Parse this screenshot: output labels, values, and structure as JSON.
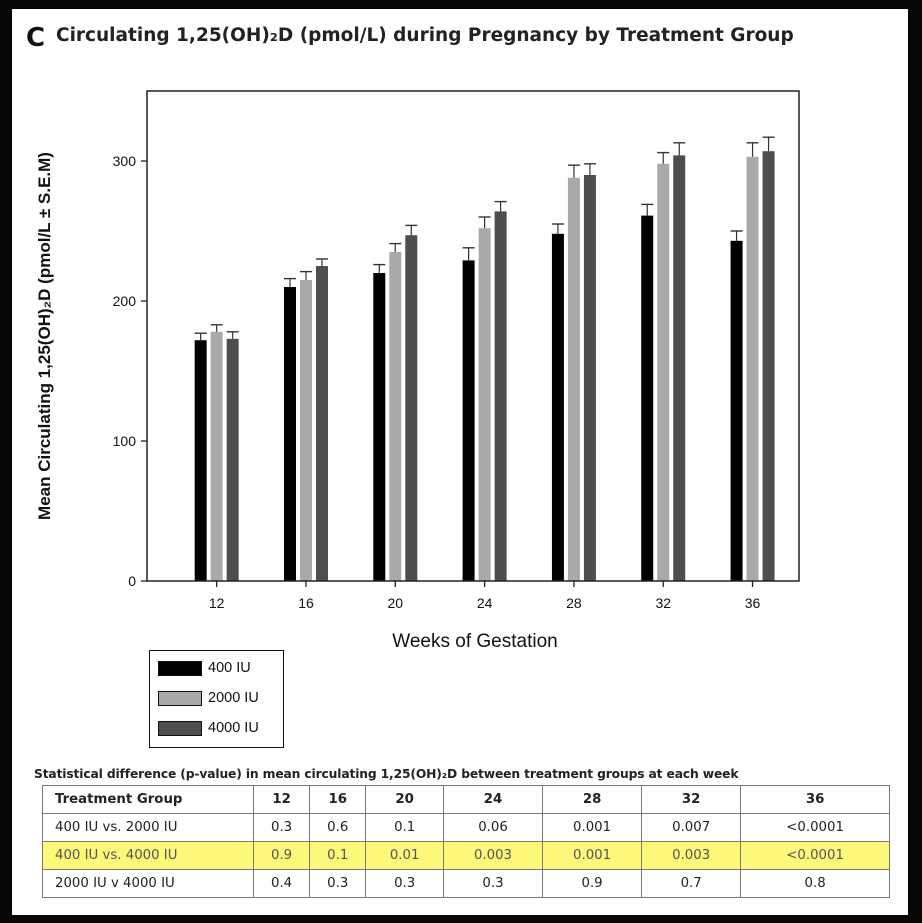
{
  "panel_letter": "C",
  "title": "Circulating 1,25(OH)₂D (pmol/L) during Pregnancy by Treatment Group",
  "chart_data": {
    "type": "bar",
    "title": "Circulating 1,25(OH)₂D (pmol/L) during Pregnancy by Treatment Group",
    "xlabel": "Weeks of Gestation",
    "ylabel": "Mean Circulating 1,25(OH)₂D (pmol/L ± S.E.M)",
    "categories": [
      "12",
      "16",
      "20",
      "24",
      "28",
      "32",
      "36"
    ],
    "ylim": [
      0,
      350
    ],
    "yticks": [
      "0",
      "100",
      "200",
      "300"
    ],
    "grid": false,
    "legend_position": "bottom-left, below axis",
    "series": [
      {
        "name": "400 IU",
        "color": "#000000",
        "values": [
          172,
          210,
          220,
          229,
          248,
          261,
          243
        ],
        "sem": [
          5,
          6,
          6,
          9,
          7,
          8,
          7
        ]
      },
      {
        "name": "2000 IU",
        "color": "#a9a9a9",
        "values": [
          178,
          215,
          235,
          252,
          288,
          298,
          303
        ],
        "sem": [
          5,
          6,
          6,
          8,
          9,
          8,
          10
        ]
      },
      {
        "name": "4000 IU",
        "color": "#4e4e4e",
        "values": [
          173,
          225,
          247,
          264,
          290,
          304,
          307
        ],
        "sem": [
          5,
          5,
          7,
          7,
          8,
          9,
          10
        ]
      }
    ]
  },
  "stats_table": {
    "caption": "Statistical difference (p-value) in mean circulating 1,25(OH)₂D between treatment groups at each week",
    "headers": [
      "Treatment Group",
      "12",
      "16",
      "20",
      "24",
      "28",
      "32",
      "36"
    ],
    "rows": [
      {
        "group": "400 IU vs.  2000 IU",
        "values": [
          "0.3",
          "0.6",
          "0.1",
          "0.06",
          "0.001",
          "0.007",
          "<0.0001"
        ]
      },
      {
        "group": "400 IU vs.  4000 IU",
        "values": [
          "0.9",
          "0.1",
          "0.01",
          "0.003",
          "0.001",
          "0.003",
          "<0.0001"
        ],
        "highlight_color": "#fdf77a"
      },
      {
        "group": "2000 IU v 4000 IU",
        "values": [
          "0.4",
          "0.3",
          "0.3",
          "0.3",
          "0.9",
          "0.7",
          "0.8"
        ]
      }
    ]
  }
}
